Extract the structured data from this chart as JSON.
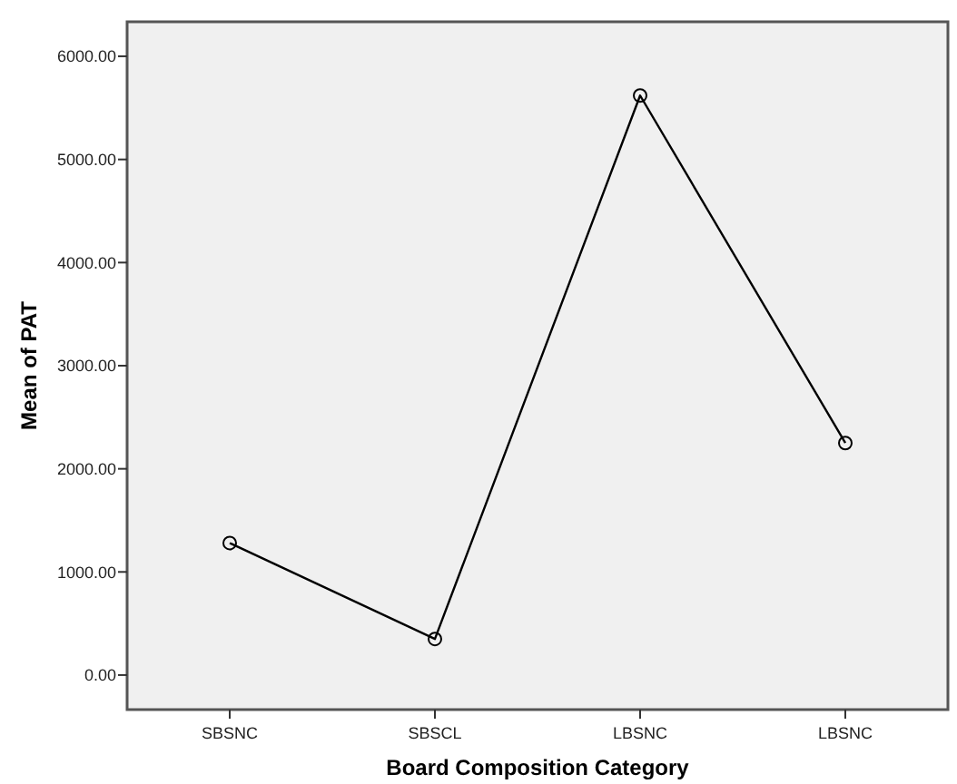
{
  "chart_data": {
    "type": "line",
    "xlabel": "Board Composition Category",
    "ylabel": "Mean of PAT",
    "categories": [
      "SBSNC",
      "SBSCL",
      "LBSNC",
      "LBSNC"
    ],
    "series": [
      {
        "color": "#000000",
        "values": [
          1280,
          350,
          5620,
          2250
        ]
      }
    ],
    "ylim": [
      -335,
      6335
    ],
    "yticks": [
      {
        "value": 0,
        "label": "0.00"
      },
      {
        "value": 1000,
        "label": "1000.00"
      },
      {
        "value": 2000,
        "label": "2000.00"
      },
      {
        "value": 3000,
        "label": "3000.00"
      },
      {
        "value": 4000,
        "label": "4000.00"
      },
      {
        "value": 5000,
        "label": "5000.00"
      },
      {
        "value": 6000,
        "label": "6000.00"
      }
    ],
    "marker": "circle",
    "line_style": "solid"
  }
}
